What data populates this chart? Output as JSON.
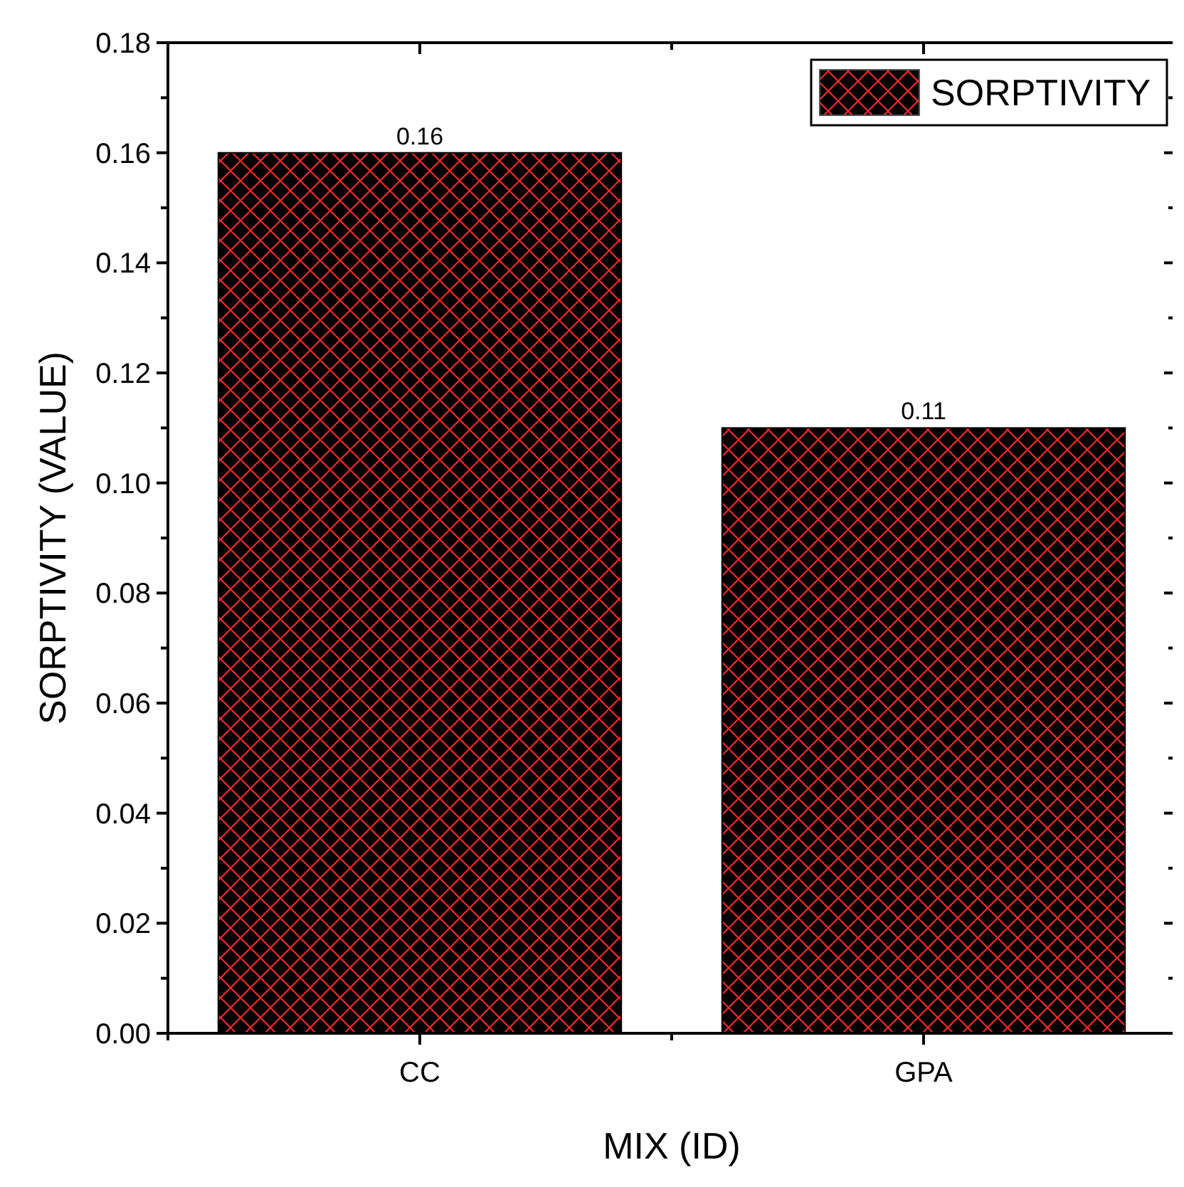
{
  "chart_data": {
    "type": "bar",
    "xlabel": "MIX (ID)",
    "ylabel": "SORPTIVITY (VALUE)",
    "categories": [
      "CC",
      "GPA"
    ],
    "series": [
      {
        "name": "SORPTIVITY",
        "color": "#000000",
        "values": [
          0.16,
          0.11
        ]
      }
    ],
    "ylim": [
      0,
      0.18
    ],
    "yticks": [
      {
        "value": 0,
        "label": "0.00"
      },
      {
        "value": 0.02,
        "label": "0.02"
      },
      {
        "value": 0.04,
        "label": "0.04"
      },
      {
        "value": 0.06,
        "label": "0.06"
      },
      {
        "value": 0.08,
        "label": "0.08"
      },
      {
        "value": 0.1,
        "label": "0.10"
      },
      {
        "value": 0.12,
        "label": "0.12"
      },
      {
        "value": 0.14,
        "label": "0.14"
      },
      {
        "value": 0.16,
        "label": "0.16"
      },
      {
        "value": 0.18,
        "label": "0.18"
      }
    ],
    "data_labels": true,
    "legend": "top right",
    "grid": false
  }
}
